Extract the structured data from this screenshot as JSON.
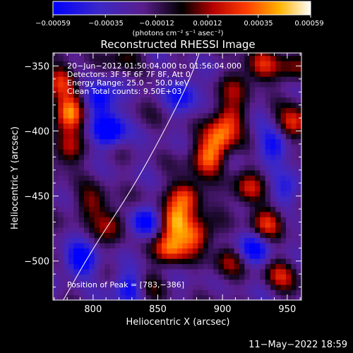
{
  "chart_data": {
    "type": "heatmap",
    "title": "Reconstructed RHESSI Image",
    "xlabel": "Heliocentric X (arcsec)",
    "ylabel": "Heliocentric Y (arcsec)",
    "xlim": [
      769,
      961
    ],
    "ylim": [
      -530,
      -340
    ],
    "x_ticks": [
      800,
      850,
      900,
      950
    ],
    "y_ticks": [
      -350,
      -400,
      -450,
      -500
    ],
    "x_tick_labels": [
      "800",
      "850",
      "900",
      "950"
    ],
    "y_tick_labels": [
      "−350",
      "−400",
      "−450",
      "−500"
    ],
    "colormap": "rainbow/heat (blue-purple-black-red-orange-yellow-white)",
    "colorbar": {
      "range": [
        -0.00059,
        0.00059
      ],
      "tick_labels": [
        "−0.00059",
        "−0.00035",
        "−0.00012",
        "0.00012",
        "0.00035",
        "0.00059"
      ],
      "units_label": "(photons cm⁻² s⁻¹ asec⁻²)"
    },
    "annotations": [
      "20−Jun−2012 01:50:04.000 to 01:56:04.000",
      "Detectors: 3F 5F 6F 7F 8F, Att 0",
      "Energy Range: 25.0 − 50.0 keV",
      "Clean    Total counts: 9.50E+03"
    ],
    "peak_label": "Position of Peak = [783,−386]",
    "peak_position": [
      783,
      -386
    ],
    "limb_curve": [
      [
        777,
        -530
      ],
      [
        800,
        -490
      ],
      [
        830,
        -445
      ],
      [
        855,
        -400
      ],
      [
        875,
        -360
      ],
      [
        882,
        -340
      ]
    ],
    "hotspots": [
      {
        "x": 783,
        "y": -386,
        "v": 1.0
      },
      {
        "x": 777,
        "y": -360,
        "v": 0.7
      },
      {
        "x": 780,
        "y": -415,
        "v": 0.6
      },
      {
        "x": 862,
        "y": -470,
        "v": 0.95
      },
      {
        "x": 872,
        "y": -450,
        "v": 0.9
      },
      {
        "x": 858,
        "y": -490,
        "v": 0.85
      },
      {
        "x": 890,
        "y": -420,
        "v": 0.85
      },
      {
        "x": 898,
        "y": -405,
        "v": 0.75
      },
      {
        "x": 880,
        "y": -480,
        "v": 0.8
      },
      {
        "x": 905,
        "y": -390,
        "v": 0.6
      },
      {
        "x": 920,
        "y": -445,
        "v": 0.6
      },
      {
        "x": 935,
        "y": -470,
        "v": 0.7
      },
      {
        "x": 955,
        "y": -395,
        "v": 0.75
      },
      {
        "x": 930,
        "y": -350,
        "v": 0.55
      },
      {
        "x": 955,
        "y": -350,
        "v": 0.5
      },
      {
        "x": 945,
        "y": -510,
        "v": 0.55
      },
      {
        "x": 815,
        "y": -470,
        "v": 0.55
      },
      {
        "x": 800,
        "y": -455,
        "v": 0.45
      },
      {
        "x": 840,
        "y": -520,
        "v": 0.4
      },
      {
        "x": 905,
        "y": -500,
        "v": 0.45
      },
      {
        "x": 825,
        "y": -340,
        "v": 0.35
      },
      {
        "x": 910,
        "y": -365,
        "v": 0.4
      }
    ],
    "coldspots": [
      {
        "x": 812,
        "y": -400,
        "v": -0.9
      },
      {
        "x": 805,
        "y": -375,
        "v": -0.8
      },
      {
        "x": 840,
        "y": -470,
        "v": -0.8
      },
      {
        "x": 790,
        "y": -500,
        "v": -0.75
      },
      {
        "x": 940,
        "y": -410,
        "v": -0.7
      },
      {
        "x": 925,
        "y": -490,
        "v": -0.7
      },
      {
        "x": 830,
        "y": -520,
        "v": -0.75
      },
      {
        "x": 950,
        "y": -445,
        "v": -0.5
      },
      {
        "x": 870,
        "y": -370,
        "v": -0.6
      }
    ]
  },
  "footer": {
    "timestamp": "11−May−2022 18:59"
  }
}
